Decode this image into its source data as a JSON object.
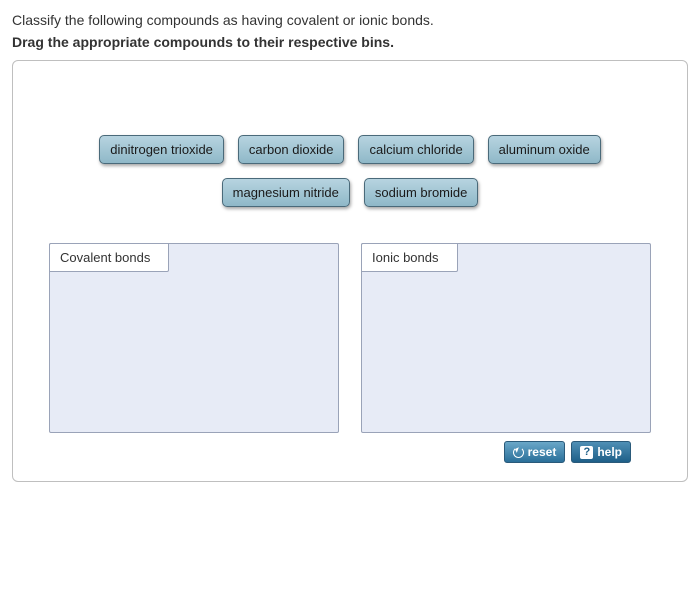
{
  "question": "Classify the following compounds as having covalent or ionic bonds.",
  "instruction": "Drag the appropriate compounds to their respective bins.",
  "compounds": {
    "row1": [
      {
        "id": "dinitrogen-trioxide",
        "label": "dinitrogen trioxide"
      },
      {
        "id": "carbon-dioxide",
        "label": "carbon dioxide"
      },
      {
        "id": "calcium-chloride",
        "label": "calcium chloride"
      },
      {
        "id": "aluminum-oxide",
        "label": "aluminum oxide"
      }
    ],
    "row2": [
      {
        "id": "magnesium-nitride",
        "label": "magnesium nitride"
      },
      {
        "id": "sodium-bromide",
        "label": "sodium bromide"
      }
    ]
  },
  "bins": [
    {
      "id": "covalent",
      "label": "Covalent bonds"
    },
    {
      "id": "ionic",
      "label": "Ionic bonds"
    }
  ],
  "buttons": {
    "reset": "reset",
    "help": "help"
  },
  "colors": {
    "chip_bg_top": "#b7d4e0",
    "chip_bg_bottom": "#8fb8c8",
    "chip_border": "#4a6a7a",
    "bin_bg": "#e7ebf6",
    "bin_border": "#9aa3b8",
    "panel_border": "#bfbfbf",
    "btn_grad_top": "#6aa7c8",
    "btn_grad_bottom": "#2a6f99"
  }
}
